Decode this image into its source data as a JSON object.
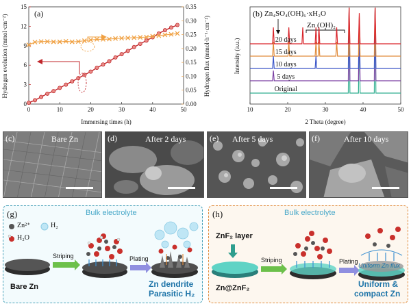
{
  "panel_a": {
    "label": "(a)",
    "xlabel": "Immersing times (h)",
    "ylabel_left": "Hydrogen evolution (mmol·cm⁻²)",
    "ylabel_right": "Hydrogen flux (mmol·h⁻¹·cm⁻²)",
    "xticks": [
      "0",
      "10",
      "20",
      "30",
      "40",
      "50"
    ],
    "yticks_left": [
      "0",
      "3",
      "6",
      "9",
      "12",
      "15"
    ],
    "yticks_right": [
      "0.00",
      "0.05",
      "0.10",
      "0.15",
      "0.20",
      "0.25",
      "0.30",
      "0.35"
    ],
    "left_color": "#c0262a",
    "right_color": "#f0a143"
  },
  "panel_b": {
    "label": "(b)",
    "xlabel": "2 Theta (degree)",
    "ylabel": "Intensity (a.u.)",
    "xticks": [
      "10",
      "20",
      "30",
      "40",
      "50"
    ],
    "annotation_1": "Zn₄SO₄(OH)₆·xH₂O",
    "annotation_2": "Zn (OH)₂",
    "curves": [
      {
        "name": "Original",
        "color": "#2fae8f"
      },
      {
        "name": "5 days",
        "color": "#7a3fa2"
      },
      {
        "name": "10 days",
        "color": "#3a55c8"
      },
      {
        "name": "15 days",
        "color": "#e08a3a"
      },
      {
        "name": "20 days",
        "color": "#d9252b"
      }
    ]
  },
  "chart_data": [
    {
      "type": "line",
      "title": "",
      "xlabel": "Immersing times (h)",
      "ylabel": "Hydrogen evolution (mmol·cm⁻²)",
      "xlim": [
        0,
        50
      ],
      "ylim": [
        0,
        15
      ],
      "ylim_right": [
        0,
        0.35
      ],
      "series": [
        {
          "axis": "left",
          "x": [
            0,
            2,
            4,
            6,
            8,
            10,
            12,
            14,
            16,
            18,
            20,
            22,
            24,
            26,
            28,
            30,
            32,
            34,
            36,
            38,
            40,
            42,
            44,
            46,
            48
          ],
          "values": [
            0.2,
            0.6,
            1.1,
            1.6,
            2.0,
            2.5,
            3.0,
            3.5,
            4.0,
            4.5,
            5.0,
            5.6,
            6.1,
            6.6,
            7.2,
            7.7,
            8.2,
            8.8,
            9.3,
            9.8,
            10.3,
            10.9,
            11.4,
            11.8,
            12.2
          ]
        },
        {
          "axis": "right",
          "x": [
            0,
            2,
            4,
            6,
            8,
            10,
            12,
            14,
            16,
            18,
            20,
            22,
            24,
            26,
            28,
            30,
            32,
            34,
            36,
            38,
            40,
            42,
            44,
            46,
            48
          ],
          "values": [
            0.213,
            0.223,
            0.225,
            0.225,
            0.224,
            0.224,
            0.226,
            0.224,
            0.225,
            0.228,
            0.231,
            0.233,
            0.233,
            0.234,
            0.236,
            0.237,
            0.238,
            0.239,
            0.24,
            0.241,
            0.244,
            0.246,
            0.249,
            0.251,
            0.254
          ]
        }
      ]
    },
    {
      "type": "line",
      "title": "",
      "xlabel": "2 Theta (degree)",
      "ylabel": "Intensity (a.u.)",
      "xlim": [
        10,
        50
      ],
      "series": [
        {
          "name": "Original",
          "peaks": [
            36.3,
            39.0,
            43.2
          ]
        },
        {
          "name": "5 days",
          "peaks": [
            16.2,
            36.3,
            39.0,
            43.2
          ]
        },
        {
          "name": "10 days",
          "peaks": [
            16.2,
            27.5,
            36.3,
            39.0,
            43.2
          ]
        },
        {
          "name": "15 days",
          "peaks": [
            16.2,
            20.3,
            27.5,
            28.3,
            33.0,
            36.3,
            39.0,
            43.2
          ]
        },
        {
          "name": "20 days",
          "peaks": [
            16.2,
            20.3,
            24.0,
            27.5,
            28.3,
            33.0,
            36.3,
            39.0,
            43.2
          ]
        }
      ]
    }
  ],
  "sem": [
    {
      "label": "(c)",
      "title": "Bare Zn"
    },
    {
      "label": "(d)",
      "title": "After 2 days"
    },
    {
      "label": "(e)",
      "title": "After 5 days"
    },
    {
      "label": "(f)",
      "title": "After 10 days"
    }
  ],
  "panel_g": {
    "label": "(g)",
    "bulk": "Bulk electrolyte",
    "legend_zn": "Zn²⁺",
    "legend_h2": "H₂",
    "legend_h2o": "H₂O",
    "striping": "Striping",
    "plating": "Plating",
    "bare_zn": "Bare Zn",
    "result_1": "Zn dendrite",
    "result_2": "Parasitic H₂"
  },
  "panel_h": {
    "label": "(h)",
    "bulk": "Bulk electrolyte",
    "layer": "ZnF₂ layer",
    "striping": "Striping",
    "plating": "Plating",
    "znf2": "Zn@ZnF₂",
    "flux": "Uniform Zn flux",
    "result_1": "Uniform &",
    "result_2": "compact Zn"
  }
}
